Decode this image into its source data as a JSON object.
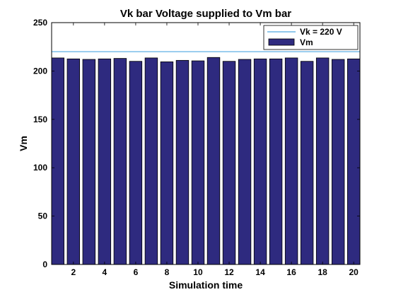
{
  "chart_data": {
    "type": "bar",
    "title": "Vk bar Voltage supplied to Vm bar",
    "xlabel": "Simulation time",
    "ylabel": "Vm",
    "x": [
      1,
      2,
      3,
      4,
      5,
      6,
      7,
      8,
      9,
      10,
      11,
      12,
      13,
      14,
      15,
      16,
      17,
      18,
      19,
      20
    ],
    "series": [
      {
        "name": "Vm",
        "color": "#2e2a7f",
        "values": [
          213.5,
          212.5,
          212.0,
          212.5,
          213.0,
          210.0,
          213.5,
          209.5,
          211.0,
          210.5,
          214.0,
          210.0,
          212.0,
          212.5,
          212.5,
          213.5,
          210.0,
          213.5,
          212.0,
          212.5
        ]
      }
    ],
    "reference_line": {
      "name": "Vk = 220 V",
      "value": 220,
      "color": "#4da6e0"
    },
    "xlim": [
      0.6,
      20.4
    ],
    "ylim": [
      0,
      250
    ],
    "xticks": [
      2,
      4,
      6,
      8,
      10,
      12,
      14,
      16,
      18,
      20
    ],
    "yticks": [
      0,
      50,
      100,
      150,
      200,
      250
    ],
    "grid": false,
    "legend_position": "top-right"
  }
}
